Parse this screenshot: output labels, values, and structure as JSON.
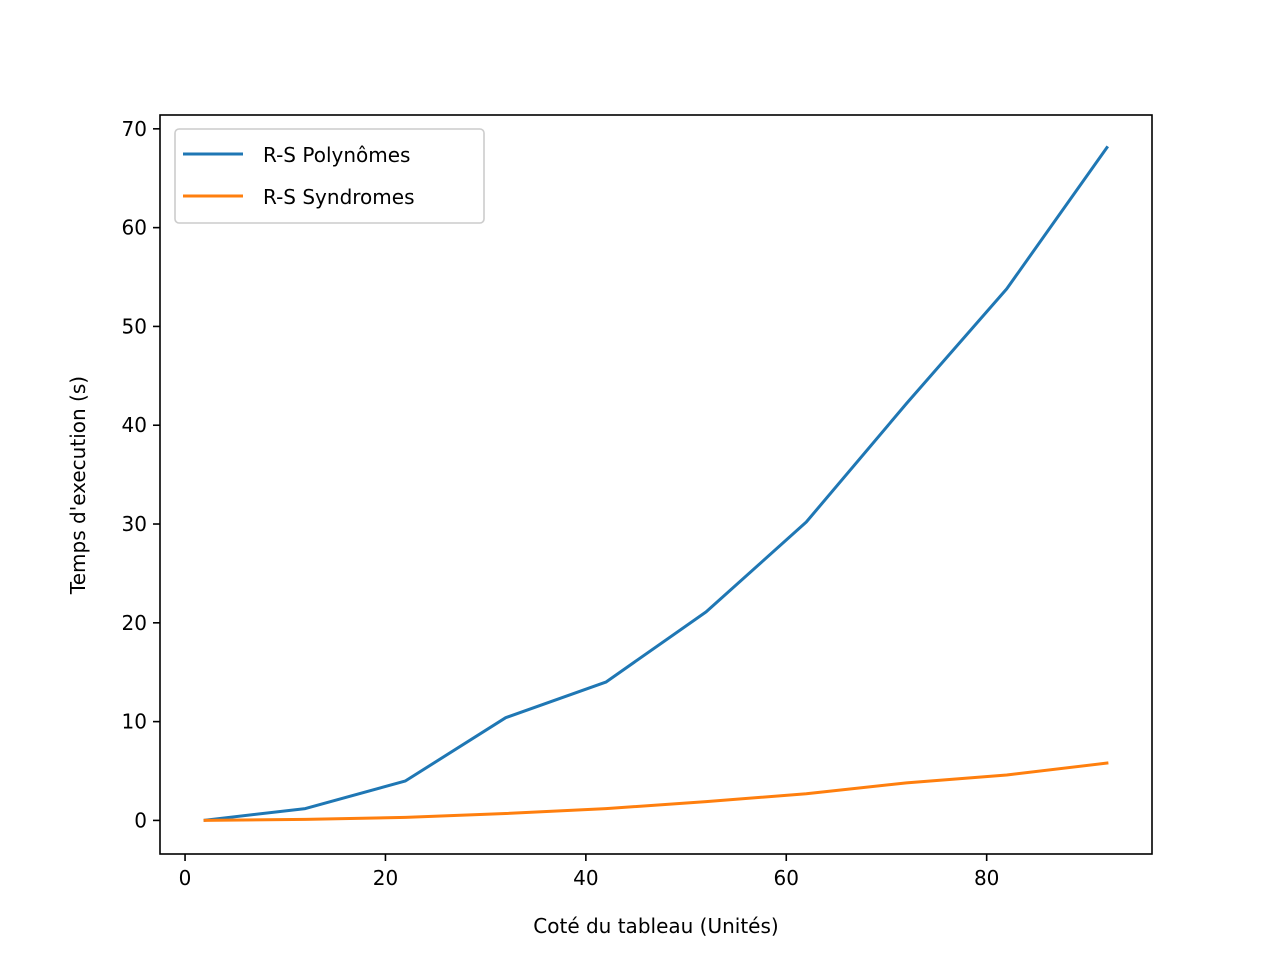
{
  "chart_data": {
    "type": "line",
    "xlabel": "Coté du tableau (Unités)",
    "ylabel": "Temps d'execution (s)",
    "xlim": [
      -2.5,
      96.5
    ],
    "ylim": [
      -3.4,
      71.4
    ],
    "xticks": [
      0,
      20,
      40,
      60,
      80
    ],
    "yticks": [
      0,
      10,
      20,
      30,
      40,
      50,
      60,
      70
    ],
    "grid": false,
    "legend_position": "top-left",
    "x": [
      2,
      12,
      22,
      32,
      42,
      52,
      62,
      72,
      82,
      92
    ],
    "series": [
      {
        "name": "R-S Polynômes",
        "color": "#1f77b4",
        "values": [
          0.02,
          1.2,
          4.0,
          10.4,
          14.0,
          21.1,
          30.2,
          42.2,
          53.8,
          68.1
        ]
      },
      {
        "name": "R-S Syndromes",
        "color": "#ff7f0e",
        "values": [
          0.0,
          0.1,
          0.3,
          0.7,
          1.2,
          1.9,
          2.7,
          3.8,
          4.6,
          5.8
        ]
      }
    ]
  }
}
